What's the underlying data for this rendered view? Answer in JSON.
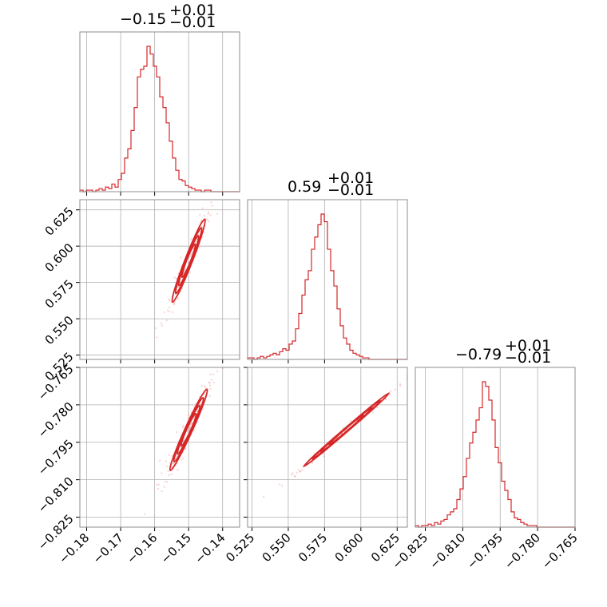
{
  "chart_data": {
    "type": "corner",
    "line_color": "#d62728",
    "grid": true,
    "bins": 50,
    "parameters": [
      {
        "median": -0.15,
        "range": [
          -0.182,
          -0.135
        ],
        "ticks": [
          -0.18,
          -0.17,
          -0.16,
          -0.15,
          -0.14
        ]
      },
      {
        "median": 0.59,
        "range": [
          0.522,
          0.632
        ],
        "ticks": [
          0.525,
          0.55,
          0.575,
          0.6,
          0.625
        ]
      },
      {
        "median": -0.79,
        "range": [
          -0.829,
          -0.765
        ],
        "ticks": [
          -0.825,
          -0.81,
          -0.795,
          -0.78,
          -0.765
        ]
      }
    ],
    "tick_labels": [
      [
        "−0.18",
        "−0.17",
        "−0.16",
        "−0.15",
        "−0.14"
      ],
      [
        "0.525",
        "0.550",
        "0.575",
        "0.600",
        "0.625"
      ],
      [
        "−0.825",
        "−0.810",
        "−0.795",
        "−0.780",
        "−0.765"
      ]
    ],
    "titles": [
      {
        "main": "−0.15",
        "sup": "+0.01",
        "sub": "−0.01"
      },
      {
        "main": "0.59",
        "sup": "+0.01",
        "sub": "−0.01"
      },
      {
        "main": "−0.79",
        "sup": "+0.01",
        "sub": "−0.01"
      }
    ],
    "histograms": [
      [
        1,
        0,
        1,
        1,
        0,
        1,
        2,
        1,
        3,
        2,
        5,
        3,
        8,
        12,
        22,
        28,
        40,
        55,
        75,
        80,
        82,
        95,
        90,
        82,
        75,
        62,
        55,
        45,
        33,
        22,
        14,
        8,
        7,
        4,
        3,
        2,
        1,
        1,
        0,
        1,
        1,
        0,
        0,
        0,
        0,
        0,
        0,
        0,
        0,
        0
      ],
      [
        1,
        1,
        0,
        1,
        2,
        1,
        2,
        3,
        4,
        3,
        5,
        7,
        6,
        10,
        12,
        20,
        30,
        42,
        52,
        58,
        72,
        80,
        88,
        95,
        90,
        72,
        58,
        48,
        33,
        22,
        14,
        10,
        6,
        4,
        3,
        2,
        1,
        1,
        0,
        0,
        0,
        0,
        0,
        0,
        0,
        0,
        0,
        0,
        0,
        0
      ],
      [
        1,
        0,
        1,
        1,
        2,
        1,
        3,
        2,
        4,
        5,
        8,
        10,
        12,
        18,
        25,
        33,
        45,
        55,
        62,
        70,
        78,
        95,
        92,
        83,
        70,
        52,
        42,
        30,
        24,
        18,
        10,
        6,
        5,
        3,
        2,
        1,
        1,
        1,
        0,
        0,
        0,
        0,
        0,
        0,
        0,
        0,
        0,
        0,
        0,
        0
      ]
    ],
    "pair_regions": [
      {
        "x": 1,
        "y": 0,
        "slope": 6.0,
        "corr": 0.985
      },
      {
        "x": 2,
        "y": 0,
        "slope": 3.0,
        "corr": 0.985
      },
      {
        "x": 2,
        "y": 1,
        "slope": 0.5,
        "corr": 0.998
      }
    ]
  }
}
